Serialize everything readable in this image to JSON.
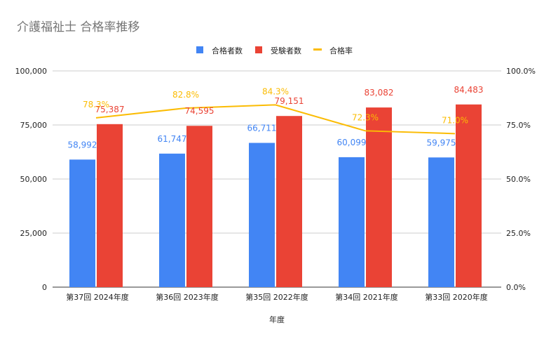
{
  "chart_data": {
    "type": "bar+line",
    "title": "介護福祉士 合格率推移",
    "xlabel": "年度",
    "ylabel": "",
    "categories": [
      "第37回 2024年度",
      "第36回 2023年度",
      "第35回 2022年度",
      "第34回 2021年度",
      "第33回 2020年度"
    ],
    "series": [
      {
        "name": "合格者数",
        "type": "bar",
        "axis": "left",
        "color": "#4285f4",
        "values": [
          58992,
          61747,
          66711,
          60099,
          59975
        ],
        "labels": [
          "58,992",
          "61,747",
          "66,711",
          "60,099",
          "59,975"
        ]
      },
      {
        "name": "受験者数",
        "type": "bar",
        "axis": "left",
        "color": "#ea4335",
        "values": [
          75387,
          74595,
          79151,
          83082,
          84483
        ],
        "labels": [
          "75,387",
          "74,595",
          "79,151",
          "83,082",
          "84,483"
        ]
      },
      {
        "name": "合格率",
        "type": "line",
        "axis": "right",
        "color": "#fbbc04",
        "values": [
          78.3,
          82.8,
          84.3,
          72.3,
          71.0
        ],
        "labels": [
          "78.3%",
          "82.8%",
          "84.3%",
          "72.3%",
          "71.0%"
        ]
      }
    ],
    "ylim": [
      0,
      100000
    ],
    "y_ticks": [
      "0",
      "25,000",
      "50,000",
      "75,000",
      "100,000"
    ],
    "y2lim": [
      0,
      100
    ],
    "y2_ticks": [
      "0.0%",
      "25.0%",
      "50.0%",
      "75.0%",
      "100.0%"
    ],
    "grid": true,
    "legend": "top-center"
  }
}
